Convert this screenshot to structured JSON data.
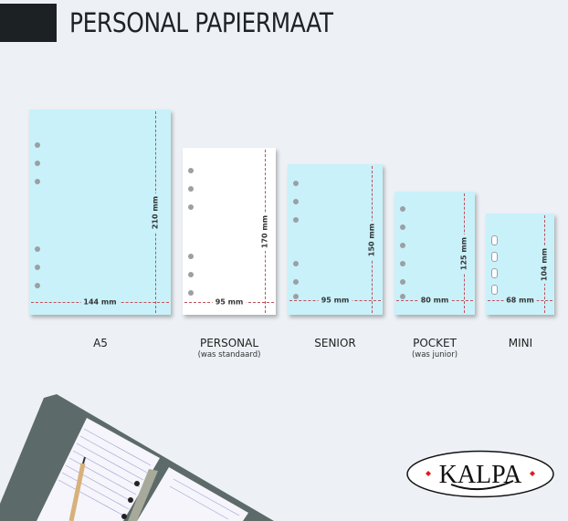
{
  "header": {
    "title": "PERSONAL PAPIERMAAT"
  },
  "sizes": [
    {
      "name": "A5",
      "sub": "",
      "width": "144 mm",
      "height": "210 mm",
      "color": "#c9f1fa"
    },
    {
      "name": "PERSONAL",
      "sub": "(was standaard)",
      "width": "95 mm",
      "height": "170 mm",
      "color": "#ffffff"
    },
    {
      "name": "SENIOR",
      "sub": "",
      "width": "95 mm",
      "height": "150 mm",
      "color": "#c9f1fa"
    },
    {
      "name": "POCKET",
      "sub": "(was junior)",
      "width": "80 mm",
      "height": "125 mm",
      "color": "#c9f1fa"
    },
    {
      "name": "MINI",
      "sub": "",
      "width": "68 mm",
      "height": "104 mm",
      "color": "#c9f1fa"
    }
  ],
  "logo": {
    "text": "KALPA"
  }
}
